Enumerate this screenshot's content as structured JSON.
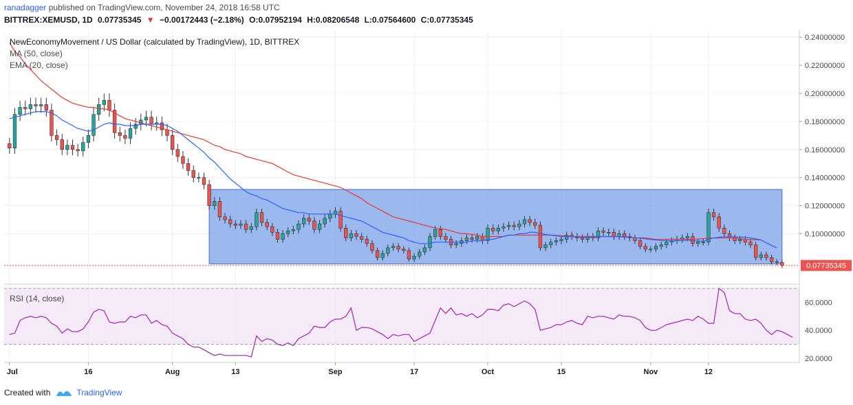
{
  "header": {
    "author": "ranadagger",
    "published_text": "published on TradingView.com, November 24, 2018 16:58 UTC",
    "symbol": "BITTREX:XEMUSD, 1D",
    "price": "0.07735345",
    "change_arrow": "▼",
    "change": "−0.00172443 (−2.18%)",
    "open": "O:0.07952194",
    "high": "H:0.08206548",
    "low": "L:0.07564600",
    "close": "C:0.07735345"
  },
  "legend": {
    "main": "NewEconomyMovement / US Dollar (calculated by TradingView), 1D, BITTREX",
    "ma": "MA (50, close)",
    "ema": "EMA (20, close)",
    "rsi": "RSI (14, close)"
  },
  "footer": {
    "created": "Created with",
    "brand": "TradingView"
  },
  "colors": {
    "up": "#26a69a",
    "down": "#ef5350",
    "ma": "#e53935",
    "ema": "#2962ff",
    "box": "#7aa2e8",
    "rsi": "#9c27b0"
  },
  "chart_data": {
    "type": "candlestick",
    "x_ticks": [
      {
        "label": "Jul",
        "index": 0
      },
      {
        "label": "16",
        "index": 15
      },
      {
        "label": "Aug",
        "index": 31
      },
      {
        "label": "13",
        "index": 43
      },
      {
        "label": "Sep",
        "index": 62
      },
      {
        "label": "17",
        "index": 77
      },
      {
        "label": "Oct",
        "index": 91
      },
      {
        "label": "15",
        "index": 105
      },
      {
        "label": "Nov",
        "index": 122
      },
      {
        "label": "12",
        "index": 133
      }
    ],
    "price_axis": {
      "range": [
        0.065,
        0.245
      ],
      "ticks": [
        "0.24000000",
        "0.22000000",
        "0.20000000",
        "0.18000000",
        "0.16000000",
        "0.14000000",
        "0.12000000",
        "0.10000000"
      ],
      "tick_values": [
        0.24,
        0.22,
        0.2,
        0.18,
        0.16,
        0.14,
        0.12,
        0.1
      ],
      "last_price_label": "0.07735345",
      "last_price": 0.07735345
    },
    "rsi_axis": {
      "range": [
        17,
        73
      ],
      "ticks": [
        "60.0000",
        "40.0000",
        "20.0000"
      ],
      "tick_values": [
        60,
        40,
        20
      ],
      "band": [
        30,
        70
      ]
    },
    "range_box": {
      "start_index": 38,
      "end_index": 147,
      "top": 0.1315,
      "bottom": 0.0785
    },
    "closes": [
      0.161,
      0.185,
      0.19,
      0.189,
      0.192,
      0.191,
      0.192,
      0.188,
      0.17,
      0.167,
      0.16,
      0.163,
      0.16,
      0.159,
      0.165,
      0.17,
      0.185,
      0.192,
      0.195,
      0.188,
      0.172,
      0.17,
      0.168,
      0.175,
      0.178,
      0.181,
      0.183,
      0.178,
      0.179,
      0.174,
      0.17,
      0.16,
      0.155,
      0.15,
      0.145,
      0.14,
      0.14,
      0.135,
      0.12,
      0.123,
      0.112,
      0.11,
      0.107,
      0.106,
      0.107,
      0.103,
      0.105,
      0.115,
      0.108,
      0.105,
      0.101,
      0.096,
      0.1,
      0.102,
      0.103,
      0.107,
      0.111,
      0.109,
      0.103,
      0.107,
      0.111,
      0.114,
      0.116,
      0.104,
      0.097,
      0.1,
      0.098,
      0.096,
      0.093,
      0.088,
      0.083,
      0.086,
      0.09,
      0.091,
      0.089,
      0.088,
      0.082,
      0.084,
      0.087,
      0.09,
      0.098,
      0.103,
      0.098,
      0.096,
      0.092,
      0.093,
      0.095,
      0.097,
      0.096,
      0.098,
      0.095,
      0.104,
      0.102,
      0.104,
      0.105,
      0.106,
      0.105,
      0.107,
      0.11,
      0.108,
      0.106,
      0.09,
      0.092,
      0.094,
      0.095,
      0.096,
      0.099,
      0.098,
      0.097,
      0.096,
      0.098,
      0.097,
      0.102,
      0.101,
      0.101,
      0.098,
      0.1,
      0.098,
      0.097,
      0.095,
      0.091,
      0.089,
      0.089,
      0.091,
      0.092,
      0.094,
      0.095,
      0.096,
      0.097,
      0.098,
      0.093,
      0.094,
      0.094,
      0.115,
      0.112,
      0.104,
      0.1,
      0.097,
      0.095,
      0.096,
      0.094,
      0.092,
      0.083,
      0.085,
      0.083,
      0.08,
      0.0795,
      0.07735
    ],
    "ma50": [
      0.236,
      0.23,
      0.226,
      0.221,
      0.217,
      0.213,
      0.209,
      0.206,
      0.203,
      0.2,
      0.197,
      0.195,
      0.193,
      0.192,
      0.191,
      0.19,
      0.19,
      0.189,
      0.189,
      0.188,
      0.186,
      0.184,
      0.182,
      0.181,
      0.18,
      0.179,
      0.178,
      0.177,
      0.176,
      0.175,
      0.174,
      0.173,
      0.172,
      0.171,
      0.17,
      0.169,
      0.168,
      0.167,
      0.165,
      0.163,
      0.162,
      0.16,
      0.159,
      0.158,
      0.157,
      0.155,
      0.154,
      0.153,
      0.152,
      0.151,
      0.15,
      0.148,
      0.146,
      0.144,
      0.142,
      0.141,
      0.14,
      0.139,
      0.138,
      0.137,
      0.136,
      0.135,
      0.134,
      0.133,
      0.131,
      0.129,
      0.127,
      0.125,
      0.122,
      0.12,
      0.118,
      0.116,
      0.114,
      0.112,
      0.111,
      0.11,
      0.109,
      0.108,
      0.107,
      0.106,
      0.105,
      0.104,
      0.1035,
      0.103,
      0.102,
      0.101,
      0.1,
      0.1,
      0.0995,
      0.099,
      0.098,
      0.098,
      0.098,
      0.098,
      0.098,
      0.099,
      0.099,
      0.099,
      0.099,
      0.099,
      0.099,
      0.099,
      0.099,
      0.099,
      0.0988,
      0.0985,
      0.0985,
      0.098,
      0.098,
      0.098,
      0.098,
      0.098,
      0.098,
      0.098,
      0.098,
      0.098,
      0.0978,
      0.0975,
      0.0975,
      0.097,
      0.097,
      0.097,
      0.0965,
      0.096,
      0.096,
      0.096,
      0.096,
      0.096,
      0.096,
      0.096,
      0.096,
      0.0962,
      0.0965,
      0.0968,
      0.097,
      0.097,
      0.097,
      0.097,
      0.097,
      0.0965,
      0.096,
      0.0958,
      0.0956,
      0.0955
    ],
    "ema20": [
      0.182,
      0.183,
      0.184,
      0.185,
      0.186,
      0.187,
      0.187,
      0.187,
      0.186,
      0.184,
      0.181,
      0.179,
      0.177,
      0.175,
      0.174,
      0.173,
      0.174,
      0.176,
      0.178,
      0.179,
      0.178,
      0.178,
      0.177,
      0.177,
      0.177,
      0.178,
      0.178,
      0.178,
      0.178,
      0.178,
      0.177,
      0.175,
      0.173,
      0.17,
      0.167,
      0.164,
      0.161,
      0.158,
      0.154,
      0.151,
      0.147,
      0.143,
      0.139,
      0.136,
      0.133,
      0.13,
      0.128,
      0.127,
      0.125,
      0.124,
      0.122,
      0.12,
      0.118,
      0.117,
      0.116,
      0.115,
      0.115,
      0.114,
      0.114,
      0.114,
      0.114,
      0.114,
      0.114,
      0.113,
      0.112,
      0.111,
      0.11,
      0.109,
      0.107,
      0.105,
      0.103,
      0.101,
      0.1,
      0.099,
      0.098,
      0.097,
      0.095,
      0.094,
      0.093,
      0.093,
      0.093,
      0.094,
      0.094,
      0.094,
      0.094,
      0.094,
      0.094,
      0.094,
      0.095,
      0.095,
      0.095,
      0.096,
      0.096,
      0.097,
      0.098,
      0.099,
      0.099,
      0.1,
      0.1,
      0.101,
      0.101,
      0.1,
      0.0995,
      0.099,
      0.0985,
      0.098,
      0.098,
      0.0978,
      0.0976,
      0.0974,
      0.0975,
      0.0975,
      0.0978,
      0.098,
      0.098,
      0.0978,
      0.0978,
      0.0977,
      0.0975,
      0.0972,
      0.0968,
      0.0963,
      0.0958,
      0.0955,
      0.0952,
      0.095,
      0.095,
      0.095,
      0.0952,
      0.0954,
      0.0951,
      0.0948,
      0.0946,
      0.096,
      0.097,
      0.0975,
      0.0978,
      0.0978,
      0.0977,
      0.0976,
      0.0974,
      0.097,
      0.0963,
      0.0955,
      0.0935,
      0.0917,
      0.0899
    ],
    "rsi": [
      37,
      38,
      47,
      49,
      50,
      49,
      50,
      49,
      45,
      43,
      38,
      41,
      39,
      39,
      41,
      46,
      53,
      55,
      54,
      46,
      45,
      46,
      46,
      50,
      49,
      51,
      51,
      45,
      47,
      44,
      43,
      38,
      36,
      34,
      30,
      28,
      28,
      26,
      24,
      22,
      23,
      22,
      22,
      22,
      22,
      22,
      21,
      36,
      32,
      34,
      33,
      30,
      29,
      31,
      29,
      34,
      36,
      38,
      43,
      42,
      42,
      46,
      48,
      48,
      50,
      56,
      40,
      42,
      42,
      41,
      39,
      37,
      34,
      37,
      36,
      37,
      37,
      32,
      34,
      36,
      38,
      47,
      56,
      52,
      56,
      51,
      52,
      50,
      52,
      49,
      51,
      55,
      55,
      54,
      58,
      59,
      57,
      59,
      61,
      59,
      55,
      40,
      41,
      42,
      44,
      44,
      46,
      47,
      45,
      44,
      50,
      49,
      50,
      50,
      49,
      48,
      51,
      50,
      50,
      49,
      47,
      42,
      40,
      40,
      42,
      44,
      45,
      46,
      47,
      48,
      47,
      50,
      48,
      45,
      45,
      70,
      67,
      54,
      52,
      52,
      48,
      47,
      48,
      45,
      40,
      37,
      40,
      39,
      37,
      35
    ]
  }
}
